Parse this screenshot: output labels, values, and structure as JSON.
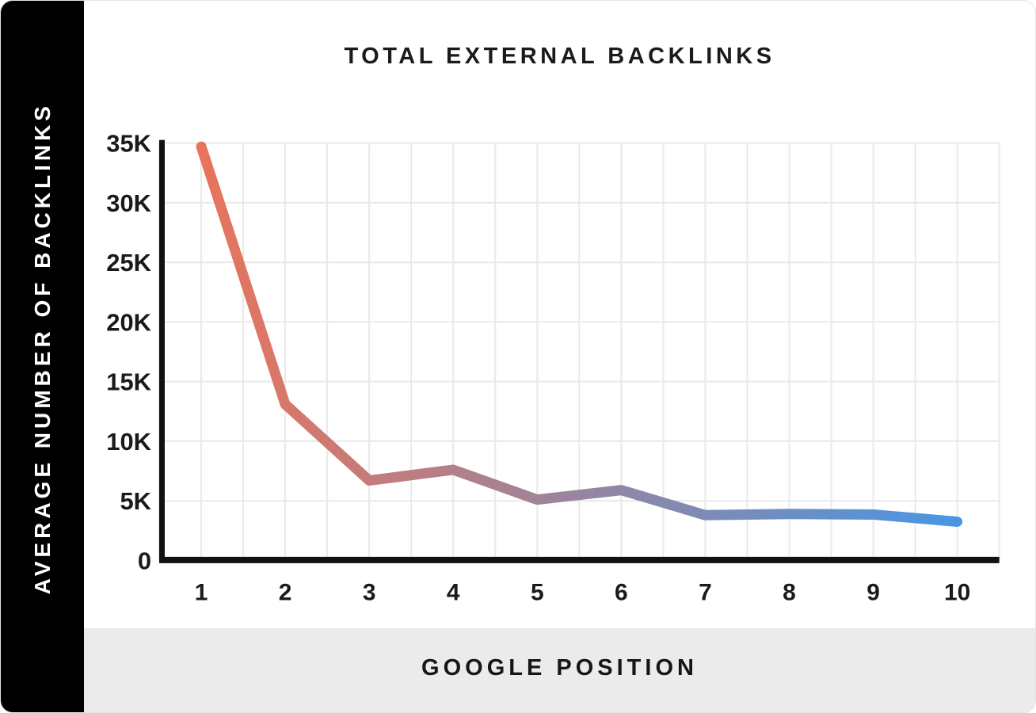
{
  "card": {
    "colors": {
      "sidebar_bg": "#000000",
      "band_bg": "#ebebeb",
      "plot_bg": "#ffffff",
      "grid": "#e9e9e9",
      "axis": "#111111",
      "label_text": "#1a1a1a"
    }
  },
  "chart_data": {
    "type": "line",
    "title": "TOTAL EXTERNAL BACKLINKS",
    "xlabel": "GOOGLE POSITION",
    "ylabel": "AVERAGE NUMBER OF BACKLINKS",
    "categories": [
      "1",
      "2",
      "3",
      "4",
      "5",
      "6",
      "7",
      "8",
      "9",
      "10"
    ],
    "values": [
      34700,
      13100,
      6700,
      7600,
      5100,
      5900,
      3800,
      3900,
      3850,
      3250
    ],
    "ylim": [
      0,
      35000
    ],
    "y_ticks": [
      {
        "value": 0,
        "label": "0"
      },
      {
        "value": 5000,
        "label": "5K"
      },
      {
        "value": 10000,
        "label": "10K"
      },
      {
        "value": 15000,
        "label": "15K"
      },
      {
        "value": 20000,
        "label": "20K"
      },
      {
        "value": 25000,
        "label": "25K"
      },
      {
        "value": 30000,
        "label": "30K"
      },
      {
        "value": 35000,
        "label": "35K"
      }
    ],
    "grid": true,
    "legend": false,
    "line_gradient": {
      "start": "#e8745b",
      "end": "#4896e3"
    },
    "line_width": 13
  }
}
